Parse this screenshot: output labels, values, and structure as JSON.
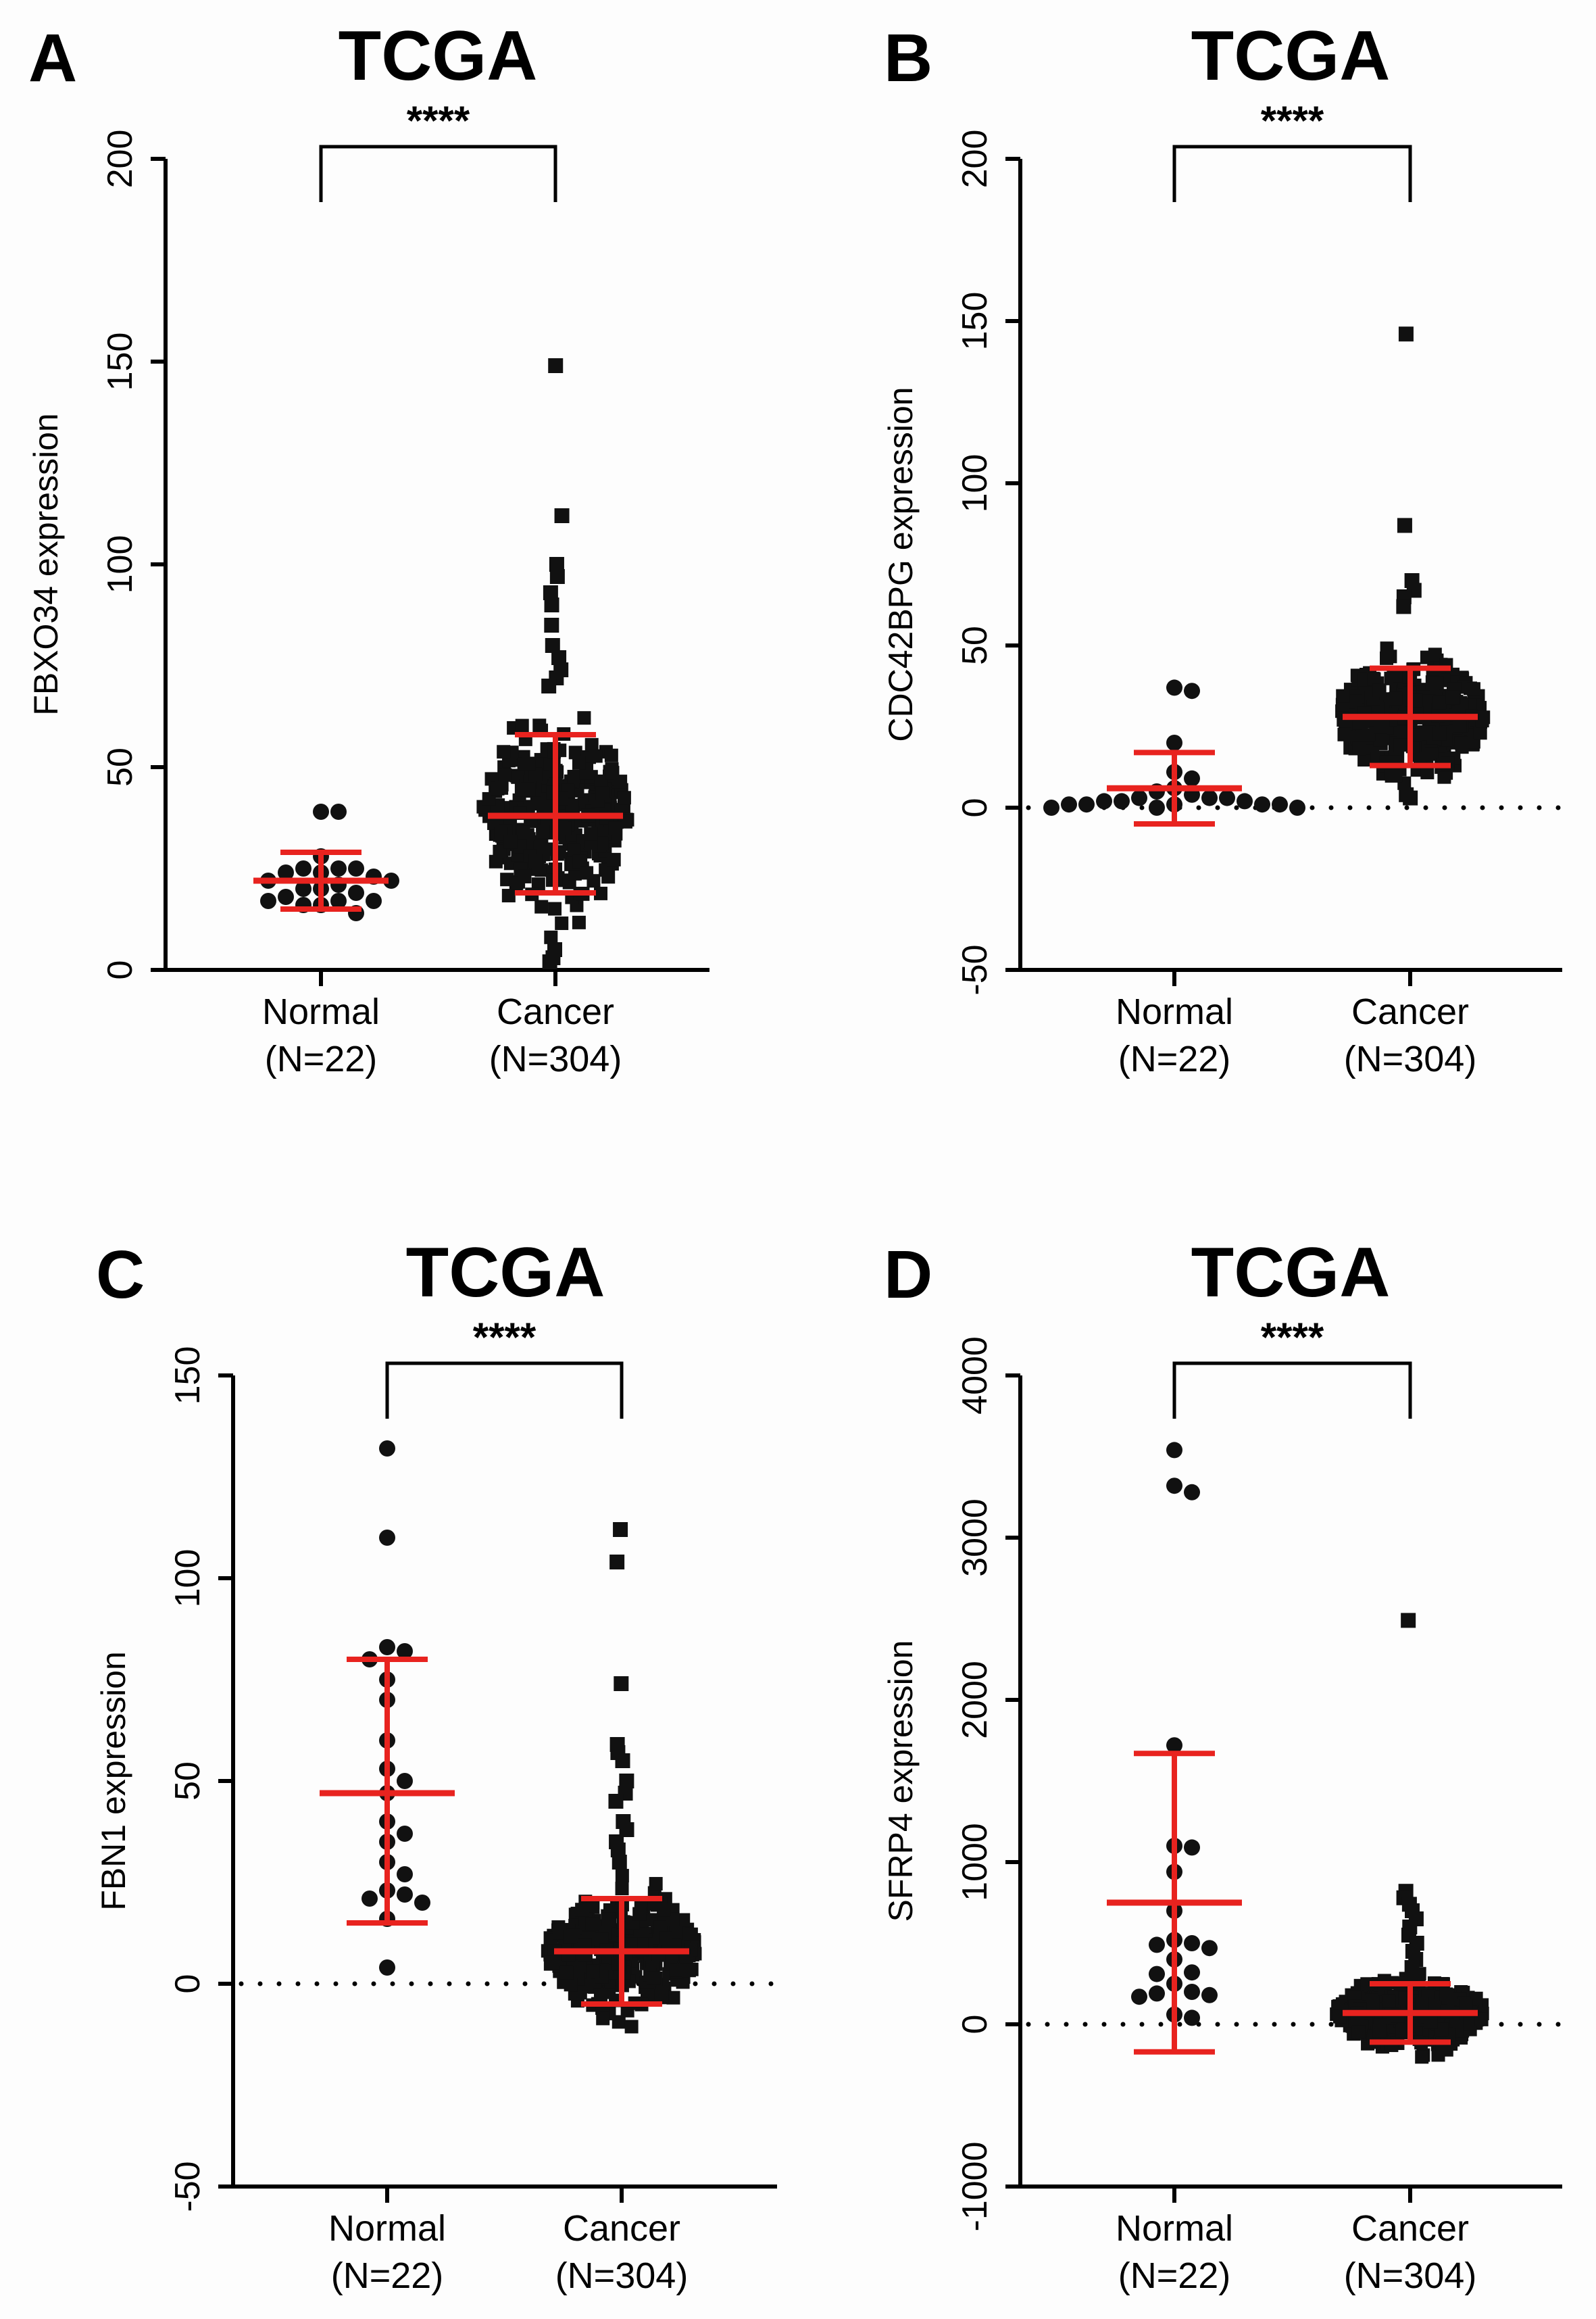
{
  "colors": {
    "points": "#111111",
    "summary": "#e8231f",
    "axis": "#000000"
  },
  "chart_data": [
    {
      "panel": "A",
      "type": "scatter",
      "title": "TCGA",
      "ylabel": "FBXO34 expression",
      "ylim": [
        0,
        200
      ],
      "yticks": [
        0,
        50,
        100,
        150,
        200
      ],
      "baseline_dotted": false,
      "significance": "****",
      "groups": [
        {
          "name": "Normal",
          "n_label": "(N=22)",
          "marker": "circle",
          "mean": 22,
          "sd_low": 15,
          "sd_high": 29,
          "values": [
            39,
            39,
            28,
            25,
            25,
            25,
            24,
            24,
            23,
            22,
            22,
            21,
            20,
            20,
            19,
            18,
            17,
            17,
            17,
            16,
            16,
            14
          ]
        },
        {
          "name": "Cancer",
          "n_label": "(N=304)",
          "marker": "square",
          "mean": 38,
          "sd_low": 19,
          "sd_high": 58,
          "n": 304,
          "outliers": [
            149,
            112,
            100,
            97,
            93,
            90,
            85,
            80,
            77,
            74,
            72,
            70,
            2,
            3,
            5
          ]
        }
      ]
    },
    {
      "panel": "B",
      "type": "scatter",
      "title": "TCGA",
      "ylabel": "CDC42BPG expression",
      "ylim": [
        -50,
        200
      ],
      "yticks": [
        -50,
        0,
        50,
        100,
        150,
        200
      ],
      "baseline_dotted": true,
      "significance": "****",
      "groups": [
        {
          "name": "Normal",
          "n_label": "(N=22)",
          "marker": "circle",
          "mean": 6,
          "sd_low": -5,
          "sd_high": 17,
          "values": [
            37,
            36,
            20,
            11,
            9,
            6,
            5,
            4,
            3,
            3,
            3,
            2,
            2,
            2,
            1,
            1,
            1,
            1,
            1,
            0,
            0,
            0
          ]
        },
        {
          "name": "Cancer",
          "n_label": "(N=304)",
          "marker": "square",
          "mean": 28,
          "sd_low": 13,
          "sd_high": 43,
          "n": 304,
          "outliers": [
            146,
            87,
            70,
            67,
            65,
            62,
            3,
            4
          ]
        }
      ]
    },
    {
      "panel": "C",
      "type": "scatter",
      "title": "TCGA",
      "ylabel": "FBN1 expression",
      "ylim": [
        -50,
        150
      ],
      "yticks": [
        -50,
        0,
        50,
        100,
        150
      ],
      "baseline_dotted": true,
      "significance": "****",
      "groups": [
        {
          "name": "Normal",
          "n_label": "(N=22)",
          "marker": "circle",
          "mean": 47,
          "sd_low": 15,
          "sd_high": 80,
          "values": [
            132,
            110,
            83,
            82,
            80,
            75,
            70,
            60,
            53,
            50,
            47,
            40,
            37,
            35,
            30,
            27,
            23,
            22,
            21,
            20,
            16,
            4
          ]
        },
        {
          "name": "Cancer",
          "n_label": "(N=304)",
          "marker": "square",
          "mean": 8,
          "sd_low": -5,
          "sd_high": 21,
          "n": 304,
          "outliers": [
            112,
            104,
            74,
            59,
            57,
            55,
            50,
            47,
            45,
            40,
            38,
            35,
            33,
            30
          ]
        }
      ]
    },
    {
      "panel": "D",
      "type": "scatter",
      "title": "TCGA",
      "ylabel": "SFRP4 expression",
      "ylim": [
        -1000,
        4000
      ],
      "yticks": [
        -1000,
        0,
        1000,
        2000,
        3000,
        4000
      ],
      "baseline_dotted": true,
      "significance": "****",
      "groups": [
        {
          "name": "Normal",
          "n_label": "(N=22)",
          "marker": "circle",
          "mean": 750,
          "sd_low": -170,
          "sd_high": 1670,
          "values": [
            3540,
            3320,
            3280,
            1720,
            1100,
            1090,
            940,
            700,
            520,
            500,
            490,
            470,
            400,
            320,
            310,
            250,
            200,
            190,
            180,
            170,
            60,
            40
          ]
        },
        {
          "name": "Cancer",
          "n_label": "(N=304)",
          "marker": "square",
          "mean": 70,
          "sd_low": -110,
          "sd_high": 250,
          "n": 304,
          "outliers": [
            2490,
            820,
            780,
            740,
            700,
            650,
            600,
            550,
            500,
            450,
            400,
            350,
            300
          ]
        }
      ]
    }
  ]
}
